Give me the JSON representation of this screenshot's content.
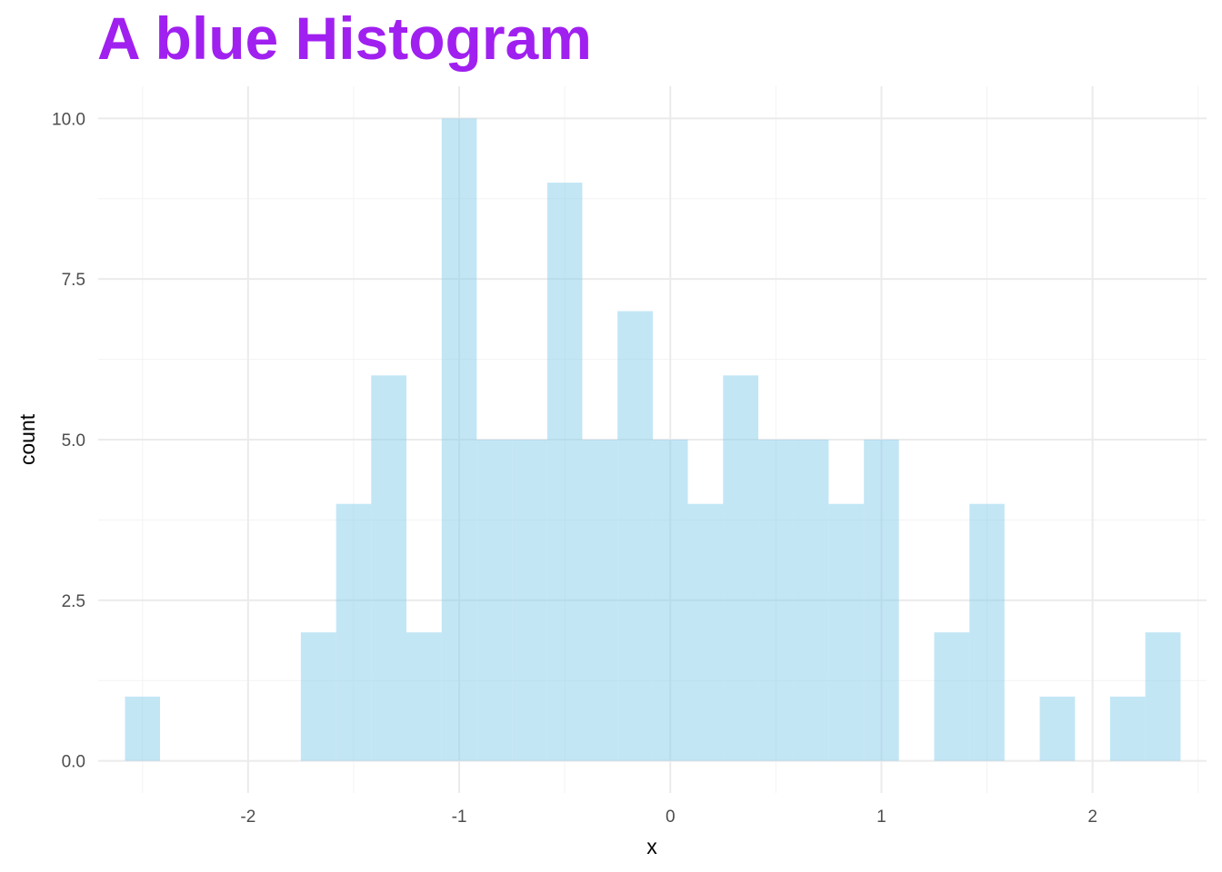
{
  "chart_data": {
    "type": "bar",
    "title": "A blue Histogram",
    "xlabel": "x",
    "ylabel": "count",
    "bin_width": 0.1667,
    "bins": [
      {
        "start": -2.583,
        "end": -2.417,
        "count": 1
      },
      {
        "start": -2.417,
        "end": -2.25,
        "count": 0
      },
      {
        "start": -2.25,
        "end": -2.083,
        "count": 0
      },
      {
        "start": -2.083,
        "end": -1.917,
        "count": 0
      },
      {
        "start": -1.917,
        "end": -1.75,
        "count": 0
      },
      {
        "start": -1.75,
        "end": -1.583,
        "count": 2
      },
      {
        "start": -1.583,
        "end": -1.417,
        "count": 4
      },
      {
        "start": -1.417,
        "end": -1.25,
        "count": 6
      },
      {
        "start": -1.25,
        "end": -1.083,
        "count": 2
      },
      {
        "start": -1.083,
        "end": -0.917,
        "count": 10
      },
      {
        "start": -0.917,
        "end": -0.75,
        "count": 5
      },
      {
        "start": -0.75,
        "end": -0.583,
        "count": 5
      },
      {
        "start": -0.583,
        "end": -0.417,
        "count": 9
      },
      {
        "start": -0.417,
        "end": -0.25,
        "count": 5
      },
      {
        "start": -0.25,
        "end": -0.083,
        "count": 7
      },
      {
        "start": -0.083,
        "end": 0.083,
        "count": 5
      },
      {
        "start": 0.083,
        "end": 0.25,
        "count": 4
      },
      {
        "start": 0.25,
        "end": 0.417,
        "count": 6
      },
      {
        "start": 0.417,
        "end": 0.583,
        "count": 5
      },
      {
        "start": 0.583,
        "end": 0.75,
        "count": 5
      },
      {
        "start": 0.75,
        "end": 0.917,
        "count": 4
      },
      {
        "start": 0.917,
        "end": 1.083,
        "count": 5
      },
      {
        "start": 1.083,
        "end": 1.25,
        "count": 0
      },
      {
        "start": 1.25,
        "end": 1.417,
        "count": 2
      },
      {
        "start": 1.417,
        "end": 1.583,
        "count": 4
      },
      {
        "start": 1.583,
        "end": 1.75,
        "count": 0
      },
      {
        "start": 1.75,
        "end": 1.917,
        "count": 1
      },
      {
        "start": 1.917,
        "end": 2.083,
        "count": 0
      },
      {
        "start": 2.083,
        "end": 2.25,
        "count": 1
      },
      {
        "start": 2.25,
        "end": 2.417,
        "count": 2
      }
    ],
    "xlim": [
      -2.71,
      2.54
    ],
    "ylim": [
      -0.5,
      10.5
    ],
    "x_ticks": [
      -2,
      -1,
      0,
      1,
      2
    ],
    "x_tick_labels": [
      "-2",
      "-1",
      "0",
      "1",
      "2"
    ],
    "x_minor_ticks": [
      -2.5,
      -1.5,
      -0.5,
      0.5,
      1.5,
      2.5
    ],
    "y_ticks": [
      0,
      2.5,
      5,
      7.5,
      10
    ],
    "y_tick_labels": [
      "0.0",
      "2.5",
      "5.0",
      "7.5",
      "10.0"
    ],
    "y_minor_ticks": [
      1.25,
      3.75,
      6.25,
      8.75
    ],
    "grid": true,
    "legend": "none",
    "colors": {
      "title": "#A020F0",
      "bar_fill": "#87CEEB",
      "bar_opacity": 0.5,
      "grid_major": "#EBEBEB",
      "grid_minor": "#F3F3F3"
    }
  }
}
